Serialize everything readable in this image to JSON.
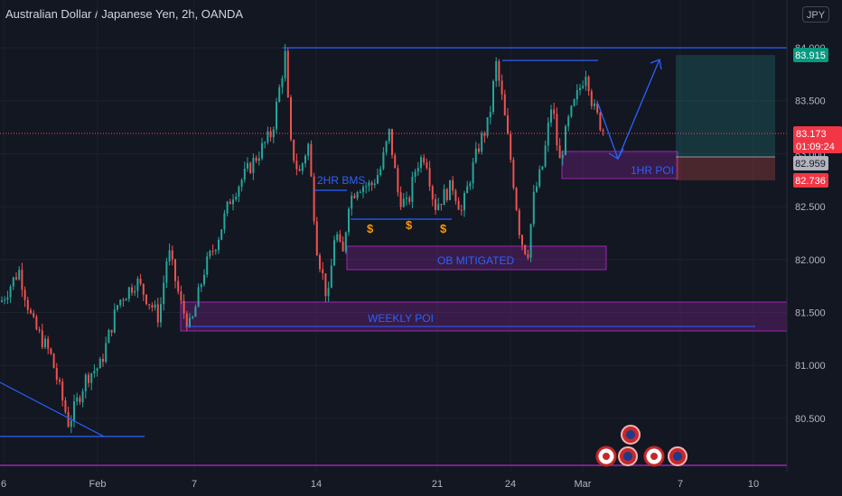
{
  "header": {
    "title": "Australian Dollar / Japanese Yen, 2h, OANDA",
    "currency_button": "JPY"
  },
  "colors": {
    "background": "#131722",
    "up": "#26a69a",
    "down": "#ef5350",
    "accent": "#2962ff",
    "zone": "#9c27b0"
  },
  "chart_data": {
    "type": "candlestick",
    "y_ticks": [
      "84.000",
      "83.500",
      "83.000",
      "82.500",
      "82.000",
      "81.500",
      "81.000",
      "80.500"
    ],
    "ylim": [
      80.1,
      84.15
    ],
    "x_ticks": [
      "6",
      "Feb",
      "7",
      "14",
      "21",
      "24",
      "Mar",
      "7",
      "10"
    ],
    "price_labels": {
      "last": "83.915",
      "current": "83.173",
      "countdown": "01:09:24",
      "entry": "82.959",
      "stop": "82.736"
    },
    "annotations": {
      "bms": "2HR BMS",
      "ob": "OB MITIGATED",
      "weekly": "WEEKLY POI",
      "poi": "1HR POI",
      "liquidity": "$"
    },
    "path": [
      [
        0,
        81.6
      ],
      [
        20,
        81.9
      ],
      [
        35,
        81.4
      ],
      [
        55,
        81.1
      ],
      [
        75,
        80.45
      ],
      [
        95,
        80.9
      ],
      [
        110,
        81.0
      ],
      [
        130,
        81.6
      ],
      [
        150,
        81.8
      ],
      [
        175,
        81.45
      ],
      [
        185,
        82.1
      ],
      [
        200,
        81.55
      ],
      [
        210,
        81.35
      ],
      [
        225,
        81.9
      ],
      [
        240,
        82.2
      ],
      [
        255,
        82.6
      ],
      [
        270,
        82.8
      ],
      [
        285,
        83.0
      ],
      [
        300,
        83.2
      ],
      [
        310,
        83.7
      ],
      [
        315,
        83.95
      ],
      [
        320,
        83.1
      ],
      [
        330,
        82.8
      ],
      [
        340,
        83.1
      ],
      [
        350,
        82.1
      ],
      [
        362,
        81.6
      ],
      [
        370,
        82.3
      ],
      [
        378,
        82.0
      ],
      [
        385,
        82.55
      ],
      [
        395,
        82.7
      ],
      [
        410,
        82.7
      ],
      [
        420,
        82.85
      ],
      [
        430,
        83.2
      ],
      [
        440,
        82.6
      ],
      [
        450,
        82.5
      ],
      [
        460,
        82.9
      ],
      [
        470,
        83.0
      ],
      [
        480,
        82.5
      ],
      [
        490,
        82.6
      ],
      [
        500,
        82.7
      ],
      [
        510,
        82.45
      ],
      [
        520,
        82.8
      ],
      [
        530,
        83.1
      ],
      [
        540,
        83.3
      ],
      [
        548,
        83.85
      ],
      [
        555,
        83.5
      ],
      [
        565,
        82.9
      ],
      [
        575,
        82.2
      ],
      [
        583,
        82.05
      ],
      [
        590,
        82.6
      ],
      [
        600,
        82.9
      ],
      [
        610,
        83.5
      ],
      [
        618,
        82.9
      ],
      [
        628,
        83.3
      ],
      [
        640,
        83.6
      ],
      [
        648,
        83.8
      ],
      [
        655,
        83.45
      ],
      [
        665,
        83.25
      ],
      [
        670,
        83.173
      ]
    ]
  }
}
